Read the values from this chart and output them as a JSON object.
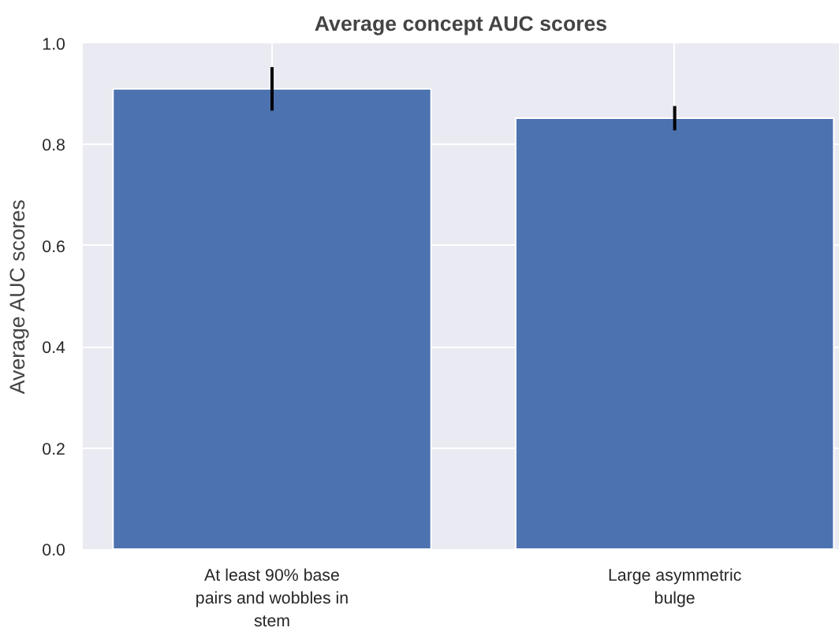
{
  "chart_data": {
    "type": "bar",
    "title": "Average concept AUC scores",
    "ylabel": "Average AUC scores",
    "categories": [
      "At least 90% base pairs and wobbles in stem",
      "Large asymmetric bulge"
    ],
    "values": [
      0.91,
      0.852
    ],
    "errors": [
      0.043,
      0.024
    ],
    "color": "#4c72b0",
    "ylim": [
      0,
      1.0
    ],
    "yticks": [
      {
        "value": 0,
        "label": "0.0"
      },
      0.2,
      0.4,
      0.6,
      0.8,
      {
        "value": 1.0,
        "label": "1.0"
      }
    ],
    "grid": true
  }
}
